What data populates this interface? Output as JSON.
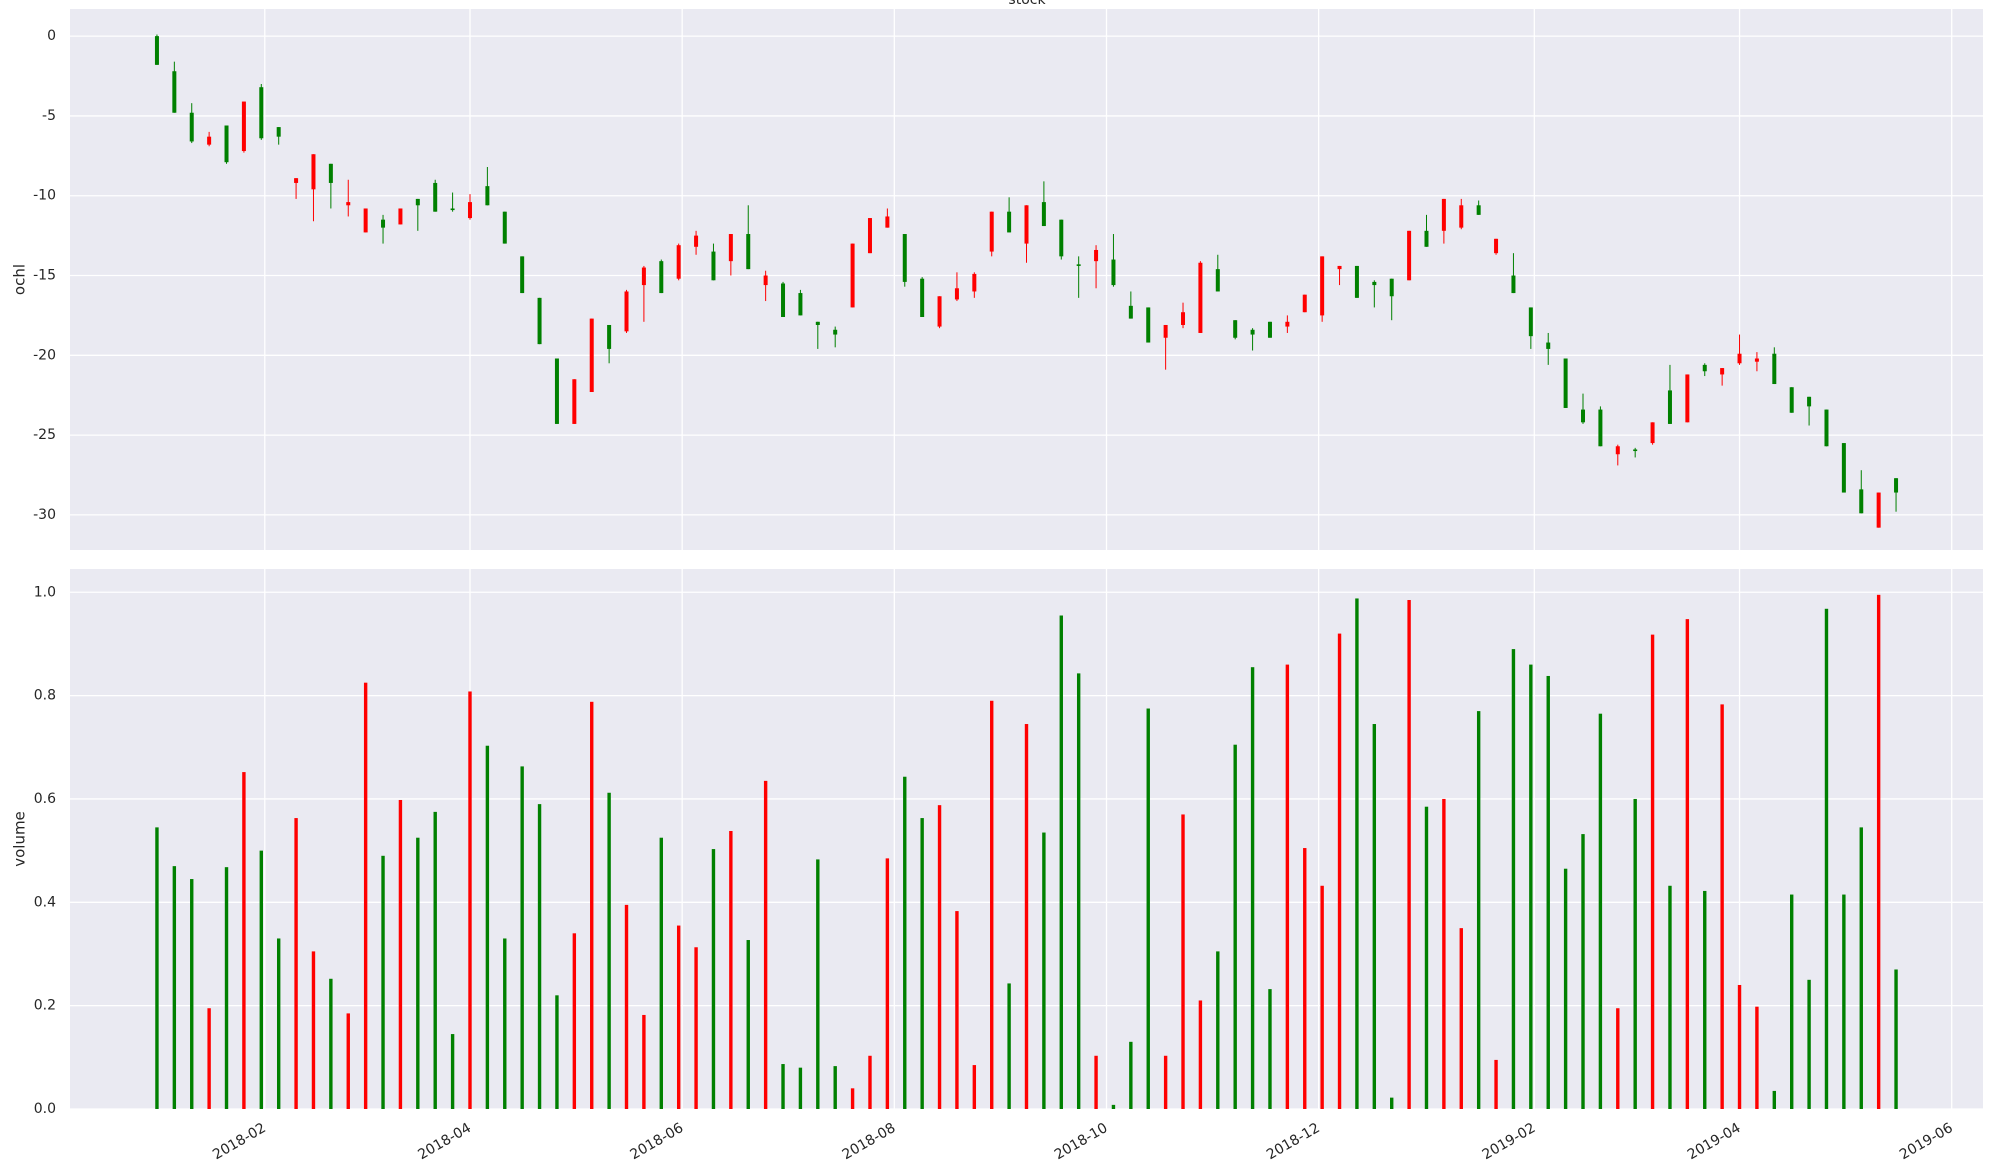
{
  "chart_data": [
    {
      "type": "candlestick",
      "title": "stock",
      "y_label": "ochl",
      "up_color": "red",
      "down_color": "green",
      "grid": true,
      "x": [
        "2018-01-01",
        "2018-01-06",
        "2018-01-11",
        "2018-01-16",
        "2018-01-21",
        "2018-01-26",
        "2018-01-31",
        "2018-02-05",
        "2018-02-10",
        "2018-02-15",
        "2018-02-20",
        "2018-02-25",
        "2018-03-02",
        "2018-03-07",
        "2018-03-12",
        "2018-03-17",
        "2018-03-22",
        "2018-03-27",
        "2018-04-01",
        "2018-04-06",
        "2018-04-11",
        "2018-04-16",
        "2018-04-21",
        "2018-04-26",
        "2018-05-01",
        "2018-05-06",
        "2018-05-11",
        "2018-05-16",
        "2018-05-21",
        "2018-05-26",
        "2018-05-31",
        "2018-06-05",
        "2018-06-10",
        "2018-06-15",
        "2018-06-20",
        "2018-06-25",
        "2018-06-30",
        "2018-07-05",
        "2018-07-10",
        "2018-07-15",
        "2018-07-20",
        "2018-07-25",
        "2018-07-30",
        "2018-08-04",
        "2018-08-09",
        "2018-08-14",
        "2018-08-19",
        "2018-08-24",
        "2018-08-29",
        "2018-09-03",
        "2018-09-08",
        "2018-09-13",
        "2018-09-18",
        "2018-09-23",
        "2018-09-28",
        "2018-10-03",
        "2018-10-08",
        "2018-10-13",
        "2018-10-18",
        "2018-10-23",
        "2018-10-28",
        "2018-11-02",
        "2018-11-07",
        "2018-11-12",
        "2018-11-17",
        "2018-11-22",
        "2018-11-27",
        "2018-12-02",
        "2018-12-07",
        "2018-12-12",
        "2018-12-17",
        "2018-12-22",
        "2018-12-27",
        "2019-01-01",
        "2019-01-06",
        "2019-01-11",
        "2019-01-16",
        "2019-01-21",
        "2019-01-26",
        "2019-01-31",
        "2019-02-05",
        "2019-02-10",
        "2019-02-15",
        "2019-02-20",
        "2019-02-25",
        "2019-03-02",
        "2019-03-07",
        "2019-03-12",
        "2019-03-17",
        "2019-03-22",
        "2019-03-27",
        "2019-04-01",
        "2019-04-06",
        "2019-04-11",
        "2019-04-16",
        "2019-04-21",
        "2019-04-26",
        "2019-05-01",
        "2019-05-06",
        "2019-05-11",
        "2019-05-16"
      ],
      "open": [
        0,
        -2.2,
        -4.8,
        -6.8,
        -5.6,
        -7.2,
        -3.2,
        -5.7,
        -9.2,
        -9.6,
        -8.0,
        -10.6,
        -12.3,
        -11.5,
        -11.8,
        -10.2,
        -9.2,
        -10.8,
        -11.4,
        -9.4,
        -11.0,
        -13.8,
        -16.4,
        -20.2,
        -24.3,
        -22.3,
        -18.1,
        -18.5,
        -15.6,
        -14.1,
        -15.2,
        -13.2,
        -13.5,
        -14.1,
        -12.4,
        -15.6,
        -15.5,
        -16.1,
        -17.9,
        -18.4,
        -17.0,
        -13.6,
        -12.0,
        -12.4,
        -15.2,
        -18.2,
        -16.5,
        -16.0,
        -13.5,
        -11.0,
        -13.0,
        -10.4,
        -11.5,
        -14.3,
        -14.1,
        -14.0,
        -16.9,
        -17.0,
        -18.9,
        -18.1,
        -18.6,
        -14.6,
        -17.8,
        -18.4,
        -17.9,
        -18.2,
        -17.3,
        -17.5,
        -14.6,
        -14.4,
        -15.4,
        -15.2,
        -15.3,
        -12.2,
        -12.2,
        -12.0,
        -10.6,
        -13.6,
        -15.0,
        -17.0,
        -19.2,
        -20.2,
        -23.4,
        -23.4,
        -26.2,
        -25.9,
        -25.5,
        -22.2,
        -24.2,
        -20.6,
        -21.2,
        -20.5,
        -20.4,
        -19.9,
        -22.0,
        -22.6,
        -23.4,
        -25.5,
        -28.4,
        -30.8,
        -27.7
      ],
      "high": [
        0.1,
        -1.6,
        -4.2,
        -6.0,
        -5.6,
        -4.1,
        -3.0,
        -5.7,
        -8.9,
        -7.4,
        -8.0,
        -9.0,
        -10.8,
        -11.2,
        -10.8,
        -10.2,
        -9.0,
        -9.8,
        -9.9,
        -8.2,
        -11.0,
        -13.8,
        -16.4,
        -20.2,
        -21.5,
        -17.7,
        -18.1,
        -15.9,
        -14.4,
        -14.0,
        -13.0,
        -12.2,
        -13.0,
        -12.4,
        -10.6,
        -14.7,
        -15.4,
        -15.9,
        -17.9,
        -18.2,
        -13.0,
        -11.4,
        -10.8,
        -12.4,
        -15.1,
        -16.3,
        -14.8,
        -14.8,
        -11.0,
        -10.1,
        -10.6,
        -9.1,
        -11.5,
        -13.8,
        -13.1,
        -12.4,
        -16.0,
        -17.0,
        -18.1,
        -16.7,
        -14.1,
        -13.7,
        -17.8,
        -18.3,
        -17.9,
        -17.5,
        -16.2,
        -13.8,
        -14.4,
        -14.4,
        -15.3,
        -15.2,
        -12.2,
        -11.2,
        -10.2,
        -10.2,
        -10.3,
        -12.7,
        -13.6,
        -17.0,
        -18.6,
        -20.2,
        -22.4,
        -23.2,
        -25.6,
        -25.8,
        -24.2,
        -20.6,
        -21.2,
        -20.5,
        -20.8,
        -18.7,
        -19.8,
        -19.5,
        -22.0,
        -22.6,
        -23.4,
        -25.5,
        -27.2,
        -28.6,
        -27.7
      ],
      "low": [
        -1.8,
        -4.8,
        -6.7,
        -6.9,
        -8.0,
        -7.3,
        -6.5,
        -6.8,
        -10.2,
        -11.6,
        -10.8,
        -11.3,
        -12.3,
        -13.0,
        -11.8,
        -12.2,
        -11.0,
        -11.0,
        -11.5,
        -10.6,
        -13.0,
        -16.1,
        -19.3,
        -24.3,
        -24.3,
        -22.3,
        -20.5,
        -18.6,
        -17.9,
        -16.1,
        -15.3,
        -13.7,
        -15.3,
        -15.0,
        -14.6,
        -16.6,
        -17.6,
        -17.5,
        -19.6,
        -19.5,
        -17.0,
        -13.6,
        -12.0,
        -15.7,
        -17.6,
        -18.3,
        -16.6,
        -16.4,
        -13.8,
        -12.3,
        -14.2,
        -11.9,
        -14.0,
        -16.4,
        -15.8,
        -15.7,
        -17.7,
        -19.2,
        -20.9,
        -18.3,
        -18.6,
        -16.0,
        -19.0,
        -19.7,
        -18.9,
        -18.6,
        -17.3,
        -17.9,
        -15.6,
        -16.4,
        -17.0,
        -17.8,
        -15.3,
        -13.2,
        -13.0,
        -12.1,
        -11.2,
        -13.7,
        -16.1,
        -19.6,
        -20.6,
        -23.3,
        -24.3,
        -25.7,
        -26.9,
        -26.4,
        -25.6,
        -24.3,
        -24.2,
        -21.3,
        -21.9,
        -20.6,
        -21.0,
        -21.8,
        -23.6,
        -24.4,
        -25.7,
        -28.6,
        -29.9,
        -30.8,
        -29.8
      ],
      "close": [
        -1.8,
        -4.8,
        -6.6,
        -6.3,
        -7.9,
        -4.1,
        -6.4,
        -6.3,
        -8.9,
        -7.4,
        -9.2,
        -10.4,
        -10.8,
        -12.0,
        -10.8,
        -10.6,
        -11.0,
        -10.9,
        -10.4,
        -10.6,
        -13.0,
        -16.1,
        -19.3,
        -24.3,
        -21.5,
        -17.7,
        -19.6,
        -16.0,
        -14.5,
        -16.1,
        -13.1,
        -12.5,
        -15.3,
        -12.4,
        -14.6,
        -15.0,
        -17.6,
        -17.5,
        -18.1,
        -18.7,
        -13.0,
        -11.4,
        -11.3,
        -15.4,
        -17.6,
        -16.3,
        -15.8,
        -14.9,
        -11.0,
        -12.3,
        -10.6,
        -11.9,
        -13.8,
        -14.4,
        -13.4,
        -15.6,
        -17.7,
        -19.2,
        -18.1,
        -17.3,
        -14.2,
        -16.0,
        -18.9,
        -18.7,
        -18.9,
        -17.9,
        -16.2,
        -13.8,
        -14.4,
        -16.4,
        -15.6,
        -16.3,
        -12.2,
        -13.2,
        -10.2,
        -10.6,
        -11.2,
        -12.7,
        -16.1,
        -18.8,
        -19.6,
        -23.3,
        -24.2,
        -25.7,
        -25.7,
        -26.0,
        -24.2,
        -24.3,
        -21.2,
        -21.0,
        -20.8,
        -19.9,
        -20.2,
        -21.8,
        -23.6,
        -23.2,
        -25.7,
        -28.6,
        -29.9,
        -28.6,
        -28.6
      ],
      "xlim": [
        "2017-12-07",
        "2019-06-10"
      ],
      "xticks": [
        {
          "value": "2018-02-01",
          "label": "2018-02"
        },
        {
          "value": "2018-04-01",
          "label": "2018-04"
        },
        {
          "value": "2018-06-01",
          "label": "2018-06"
        },
        {
          "value": "2018-08-01",
          "label": "2018-08"
        },
        {
          "value": "2018-10-01",
          "label": "2018-10"
        },
        {
          "value": "2018-12-01",
          "label": "2018-12"
        },
        {
          "value": "2019-02-01",
          "label": "2019-02"
        },
        {
          "value": "2019-04-01",
          "label": "2019-04"
        },
        {
          "value": "2019-06-01",
          "label": "2019-06"
        }
      ],
      "ylim": [
        -32.2,
        1.7
      ],
      "yticks": [
        0,
        -5,
        -10,
        -15,
        -20,
        -25,
        -30
      ]
    },
    {
      "type": "bar",
      "y_label": "volume",
      "up_color": "red",
      "down_color": "green",
      "grid": true,
      "values": [
        0.545,
        0.47,
        0.445,
        0.195,
        0.468,
        0.652,
        0.5,
        0.33,
        0.563,
        0.305,
        0.252,
        0.185,
        0.825,
        0.49,
        0.598,
        0.525,
        0.575,
        0.145,
        0.808,
        0.703,
        0.33,
        0.663,
        0.59,
        0.22,
        0.34,
        0.788,
        0.612,
        0.395,
        0.182,
        0.525,
        0.355,
        0.313,
        0.503,
        0.538,
        0.327,
        0.635,
        0.087,
        0.08,
        0.483,
        0.083,
        0.04,
        0.103,
        0.485,
        0.643,
        0.563,
        0.588,
        0.383,
        0.085,
        0.79,
        0.243,
        0.745,
        0.535,
        0.955,
        0.843,
        0.103,
        0.008,
        0.13,
        0.775,
        0.103,
        0.57,
        0.21,
        0.305,
        0.705,
        0.855,
        0.232,
        0.86,
        0.505,
        0.432,
        0.92,
        0.988,
        0.745,
        0.022,
        0.985,
        0.585,
        0.6,
        0.35,
        0.77,
        0.095,
        0.89,
        0.86,
        0.838,
        0.465,
        0.532,
        0.765,
        0.195,
        0.6,
        0.918,
        0.432,
        0.948,
        0.422,
        0.783,
        0.24,
        0.198,
        0.035,
        0.415,
        0.25,
        0.968,
        0.415,
        0.545,
        0.995,
        0.27
      ],
      "ylim": [
        0,
        1.045
      ],
      "yticks": [
        {
          "value": 0,
          "label": "0.0"
        },
        {
          "value": 0.2,
          "label": "0.2"
        },
        {
          "value": 0.4,
          "label": "0.4"
        },
        {
          "value": 0.6,
          "label": "0.6"
        },
        {
          "value": 0.8,
          "label": "0.8"
        },
        {
          "value": 1,
          "label": "1.0"
        }
      ]
    }
  ]
}
